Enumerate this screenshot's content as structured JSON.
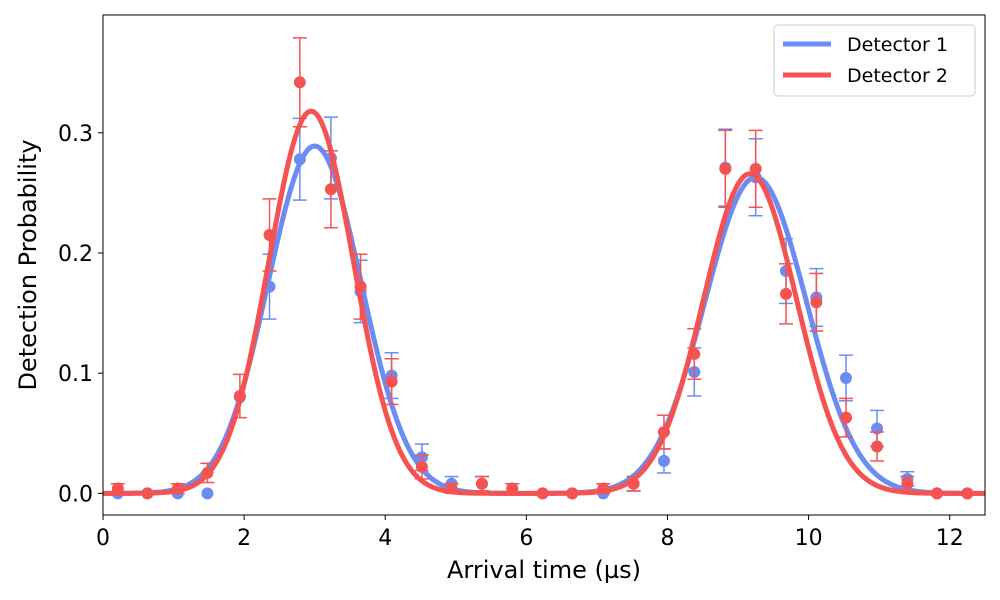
{
  "chart_data": {
    "type": "scatter",
    "xlabel": "Arrival time (µs)",
    "ylabel": "Detection Probability",
    "xlim": [
      0,
      12.5
    ],
    "ylim": [
      -0.018,
      0.398
    ],
    "xticks": [
      0,
      2,
      4,
      6,
      8,
      10,
      12
    ],
    "yticks": [
      0.0,
      0.1,
      0.2,
      0.3
    ],
    "xtick_labels": [
      "0",
      "2",
      "4",
      "6",
      "8",
      "10",
      "12"
    ],
    "ytick_labels": [
      "0.0",
      "0.1",
      "0.2",
      "0.3"
    ],
    "legend_position": "top-right",
    "x": [
      0.21,
      0.63,
      1.06,
      1.48,
      1.94,
      2.36,
      2.79,
      3.23,
      3.65,
      4.09,
      4.52,
      4.94,
      5.37,
      5.8,
      6.23,
      6.65,
      7.09,
      7.52,
      7.95,
      8.38,
      8.82,
      9.25,
      9.68,
      10.11,
      10.53,
      10.97,
      11.4,
      11.82,
      12.25
    ],
    "series": [
      {
        "name": "Detector 1",
        "color": "#6b8cf2",
        "y": [
          0.0,
          0.0,
          0.0,
          0.0,
          0.08,
          0.172,
          0.278,
          0.279,
          0.168,
          0.098,
          0.03,
          0.008,
          0.008,
          0.004,
          0.0,
          0.0,
          0.0,
          0.008,
          0.027,
          0.101,
          0.271,
          0.263,
          0.185,
          0.163,
          0.096,
          0.054,
          0.012,
          0.0,
          0.0
        ],
        "err": [
          0.0,
          0.0,
          0.0,
          0.0,
          0.0,
          0.027,
          0.034,
          0.034,
          0.026,
          0.019,
          0.011,
          0.006,
          0.006,
          0.004,
          0.0,
          0.0,
          0.0,
          0.006,
          0.01,
          0.02,
          0.032,
          0.032,
          0.027,
          0.024,
          0.019,
          0.015,
          0.006,
          0.0,
          0.0
        ],
        "fit": {
          "mu1": 3.0,
          "sigma1": 0.66,
          "amp1": 0.289,
          "mu2": 9.25,
          "sigma2": 0.72,
          "amp2": 0.263
        }
      },
      {
        "name": "Detector 2",
        "color": "#f55252",
        "y": [
          0.004,
          0.0,
          0.004,
          0.017,
          0.081,
          0.215,
          0.342,
          0.253,
          0.172,
          0.093,
          0.022,
          0.004,
          0.008,
          0.004,
          0.0,
          0.0,
          0.004,
          0.008,
          0.051,
          0.116,
          0.27,
          0.27,
          0.166,
          0.159,
          0.063,
          0.039,
          0.008,
          0.0,
          0.0
        ],
        "err": [
          0.004,
          0.0,
          0.004,
          0.008,
          0.018,
          0.03,
          0.037,
          0.032,
          0.027,
          0.019,
          0.01,
          0.004,
          0.006,
          0.004,
          0.0,
          0.0,
          0.004,
          0.006,
          0.014,
          0.021,
          0.032,
          0.032,
          0.025,
          0.024,
          0.016,
          0.012,
          0.006,
          0.0,
          0.0
        ],
        "fit": {
          "mu1": 2.95,
          "sigma1": 0.6,
          "amp1": 0.318,
          "mu2": 9.17,
          "sigma2": 0.66,
          "amp2": 0.266
        }
      }
    ]
  }
}
